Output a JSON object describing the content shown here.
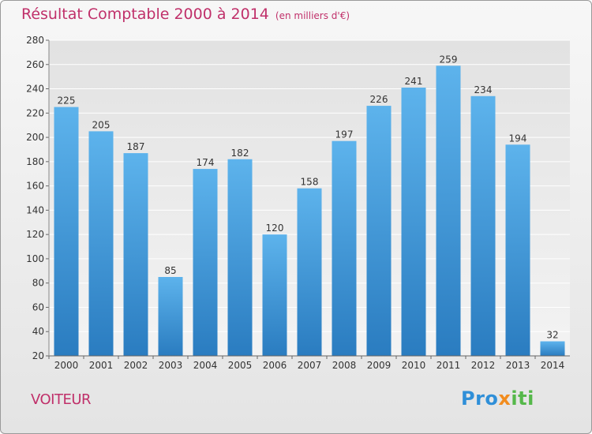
{
  "chart_data": {
    "type": "bar",
    "title": "Résultat Comptable 2000 à 2014",
    "subtitle": "(en milliers d'€)",
    "categories": [
      "2000",
      "2001",
      "2002",
      "2003",
      "2004",
      "2005",
      "2006",
      "2007",
      "2008",
      "2009",
      "2010",
      "2011",
      "2012",
      "2013",
      "2014"
    ],
    "values": [
      225,
      205,
      187,
      85,
      174,
      182,
      120,
      158,
      197,
      226,
      241,
      259,
      234,
      194,
      32
    ],
    "ylim": [
      20,
      280
    ],
    "yticks": [
      20,
      40,
      60,
      80,
      100,
      120,
      140,
      160,
      180,
      200,
      220,
      240,
      260,
      280
    ],
    "xlabel": "",
    "ylabel": "",
    "grid": true,
    "legend": "none"
  },
  "footer": {
    "place": "VOITEUR",
    "logo": {
      "part1": "Pro",
      "part2": "x",
      "part3": "iti"
    }
  },
  "colors": {
    "title": "#c0306a",
    "bar_top": "#5db3ec",
    "bar_bottom": "#2a7cc0",
    "grid": "#ffffff"
  }
}
